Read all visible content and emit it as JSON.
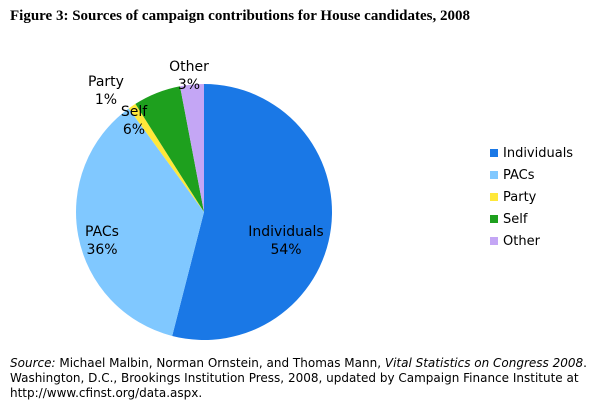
{
  "chart_data": {
    "type": "pie",
    "title": "Figure 3: Sources of campaign contributions for House candidates, 2008",
    "slices": [
      {
        "label": "Individuals",
        "value": 54,
        "value_label": "54%",
        "color": "#1a78e6"
      },
      {
        "label": "PACs",
        "value": 36,
        "value_label": "36%",
        "color": "#80c8ff"
      },
      {
        "label": "Party",
        "value": 1,
        "value_label": "1%",
        "color": "#ffe83a"
      },
      {
        "label": "Self",
        "value": 6,
        "value_label": "6%",
        "color": "#1ea01e"
      },
      {
        "label": "Other",
        "value": 3,
        "value_label": "3%",
        "color": "#c4a6f5"
      }
    ],
    "legend_placement": "right"
  },
  "source": {
    "prefix": "Source:",
    "authors": " Michael Malbin, Norman Ornstein, and Thomas Mann, ",
    "book": "Vital Statistics on Congress 2008",
    "rest": ". Washington, D.C., Brookings Institution Press, 2008, updated by Campaign Finance Institute at http://www.cfinst.org/data.aspx."
  }
}
